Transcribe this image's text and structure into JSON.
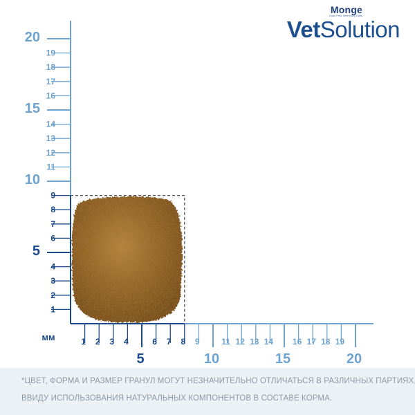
{
  "brand": {
    "name_small": "Monge",
    "tagline": "Grain Free Veterinary Diets",
    "name_big_bold": "Vet",
    "name_big_light": "Solution"
  },
  "ruler": {
    "unit": "мм",
    "x_minor": [
      {
        "v": 1,
        "t": "1"
      },
      {
        "v": 2,
        "t": "2"
      },
      {
        "v": 3,
        "t": "3"
      },
      {
        "v": 4,
        "t": "4"
      },
      {
        "v": 6,
        "t": "6"
      },
      {
        "v": 7,
        "t": "7"
      },
      {
        "v": 8,
        "t": "8"
      },
      {
        "v": 9,
        "t": "9"
      },
      {
        "v": 11,
        "t": "11"
      },
      {
        "v": 12,
        "t": "12"
      },
      {
        "v": 13,
        "t": "13"
      },
      {
        "v": 14,
        "t": "14"
      },
      {
        "v": 16,
        "t": "16"
      },
      {
        "v": 17,
        "t": "17"
      },
      {
        "v": 18,
        "t": "18"
      },
      {
        "v": 19,
        "t": "19"
      }
    ],
    "x_major": [
      {
        "v": 5,
        "t": "5"
      },
      {
        "v": 10,
        "t": "10"
      },
      {
        "v": 15,
        "t": "15"
      },
      {
        "v": 20,
        "t": "20"
      }
    ],
    "y_minor": [
      {
        "v": 1,
        "t": "1"
      },
      {
        "v": 2,
        "t": "2"
      },
      {
        "v": 3,
        "t": "3"
      },
      {
        "v": 4,
        "t": "4"
      },
      {
        "v": 6,
        "t": "6"
      },
      {
        "v": 7,
        "t": "7"
      },
      {
        "v": 8,
        "t": "8"
      },
      {
        "v": 9,
        "t": "9"
      },
      {
        "v": 11,
        "t": "11"
      },
      {
        "v": 12,
        "t": "12"
      },
      {
        "v": 13,
        "t": "13"
      },
      {
        "v": 14,
        "t": "14"
      },
      {
        "v": 16,
        "t": "16"
      },
      {
        "v": 17,
        "t": "17"
      },
      {
        "v": 18,
        "t": "18"
      },
      {
        "v": 19,
        "t": "19"
      }
    ],
    "y_major": [
      {
        "v": 5,
        "t": "5"
      },
      {
        "v": 10,
        "t": "10"
      },
      {
        "v": 15,
        "t": "15"
      },
      {
        "v": 20,
        "t": "20"
      }
    ],
    "kibble_width_mm": 8,
    "kibble_height_mm": 9,
    "colors": {
      "dark_blue": "#1a4a8a",
      "light_blue": "#6ea3cf",
      "kibble_dark": "#6b3f12",
      "kibble_mid": "#9a6422",
      "kibble_light": "#c08a3e"
    }
  },
  "disclaimer": {
    "line1": "*ЦВЕТ, ФОРМА И РАЗМЕР ГРАНУЛ МОГУТ НЕЗНАЧИТЕЛЬНО ОТЛИЧАТЬСЯ В РАЗЛИЧНЫХ ПАРТИЯХ,",
    "line2": "ВВИДУ ИСПОЛЬЗОВАНИЯ НАТУРАЛЬНЫХ КОМПОНЕНТОВ В СОСТАВЕ КОРМА."
  }
}
